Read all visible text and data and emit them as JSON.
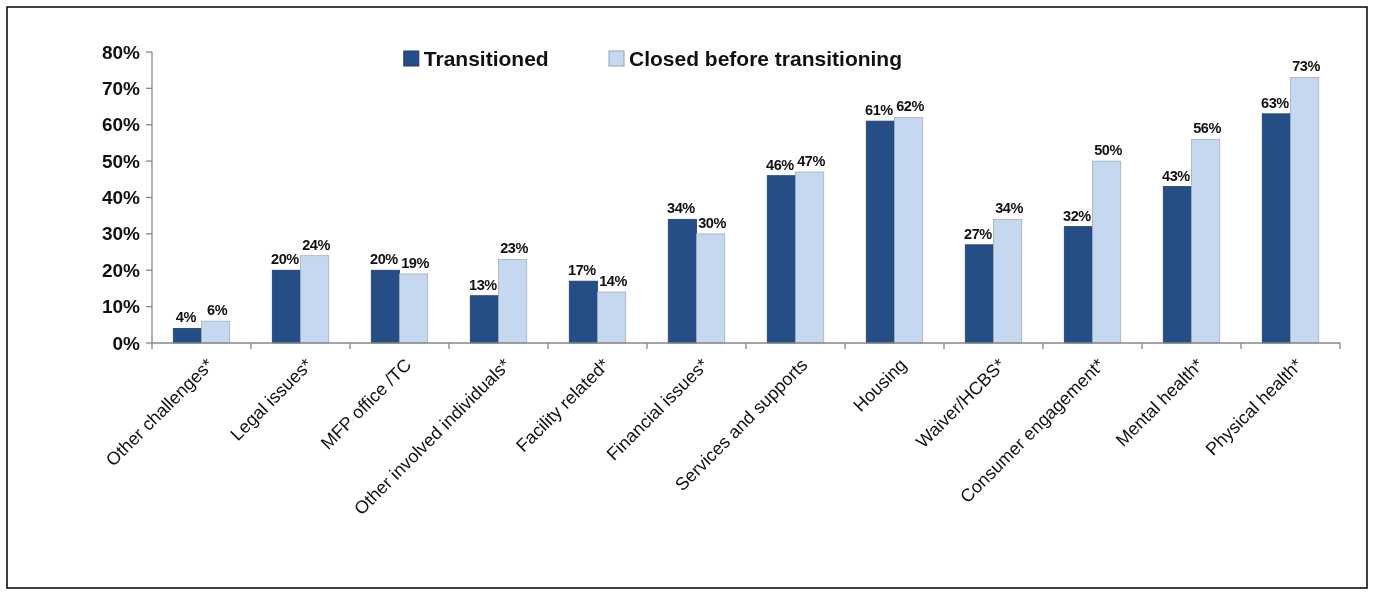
{
  "chart_data": {
    "type": "bar",
    "categories": [
      "Other challenges*",
      "Legal issues*",
      "MFP office /TC",
      "Other involved individuals*",
      "Facility related*",
      "Financial issues*",
      "Services and supports",
      "Housing",
      "Waiver/HCBS*",
      "Consumer engagement*",
      "Mental health*",
      "Physical health*"
    ],
    "series": [
      {
        "name": "Transitioned",
        "color": "#254e86",
        "values": [
          4,
          20,
          20,
          13,
          17,
          34,
          46,
          61,
          27,
          32,
          43,
          63
        ],
        "value_labels": [
          "4%",
          "20%",
          "20%",
          "13%",
          "17%",
          "34%",
          "46%",
          "61%",
          "27%",
          "32%",
          "43%",
          "63%"
        ]
      },
      {
        "name": "Closed before transitioning",
        "color": "#c6d8ef",
        "values": [
          6,
          24,
          19,
          23,
          14,
          30,
          47,
          62,
          34,
          50,
          56,
          73
        ],
        "value_labels": [
          "6%",
          "24%",
          "19%",
          "23%",
          "14%",
          "30%",
          "47%",
          "62%",
          "34%",
          "50%",
          "56%",
          "73%"
        ]
      }
    ],
    "ylim": [
      0,
      80
    ],
    "yticks": [
      {
        "value": 0,
        "label": "0%"
      },
      {
        "value": 10,
        "label": "10%"
      },
      {
        "value": 20,
        "label": "20%"
      },
      {
        "value": 30,
        "label": "30%"
      },
      {
        "value": 40,
        "label": "40%"
      },
      {
        "value": 50,
        "label": "50%"
      },
      {
        "value": 60,
        "label": "60%"
      },
      {
        "value": 70,
        "label": "70%"
      },
      {
        "value": 80,
        "label": "80%"
      }
    ],
    "legend": "top"
  }
}
